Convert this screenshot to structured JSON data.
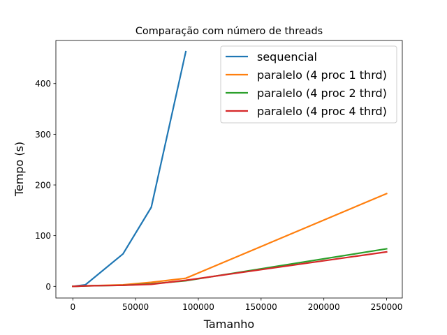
{
  "chart_data": {
    "type": "line",
    "title": "Comparação com número de threads",
    "xlabel": "Tamanho",
    "ylabel": "Tempo (s)",
    "xlim": [
      -13500,
      262500
    ],
    "ylim": [
      -23,
      485
    ],
    "xticks": [
      0,
      50000,
      100000,
      150000,
      200000,
      250000
    ],
    "yticks": [
      0,
      100,
      200,
      300,
      400
    ],
    "grid": false,
    "legend_position": "upper right",
    "series": [
      {
        "name": "sequencial",
        "color": "#1f77b4",
        "points": [
          [
            0,
            0
          ],
          [
            10000,
            3
          ],
          [
            40000,
            64
          ],
          [
            62500,
            156
          ],
          [
            90000,
            463
          ]
        ]
      },
      {
        "name": "paralelo (4 proc 1 thrd)",
        "color": "#ff7f0e",
        "points": [
          [
            0,
            0
          ],
          [
            10000,
            1
          ],
          [
            40000,
            3
          ],
          [
            62500,
            8
          ],
          [
            90000,
            16
          ],
          [
            250000,
            183
          ]
        ]
      },
      {
        "name": "paralelo (4 proc 2 thrd)",
        "color": "#2ca02c",
        "points": [
          [
            0,
            0
          ],
          [
            10000,
            1
          ],
          [
            40000,
            2
          ],
          [
            62500,
            5
          ],
          [
            90000,
            11
          ],
          [
            250000,
            74
          ]
        ]
      },
      {
        "name": "paralelo (4 proc 4 thrd)",
        "color": "#d62728",
        "points": [
          [
            0,
            0
          ],
          [
            10000,
            1
          ],
          [
            40000,
            2
          ],
          [
            62500,
            4
          ],
          [
            90000,
            12
          ],
          [
            250000,
            68
          ]
        ]
      }
    ]
  }
}
